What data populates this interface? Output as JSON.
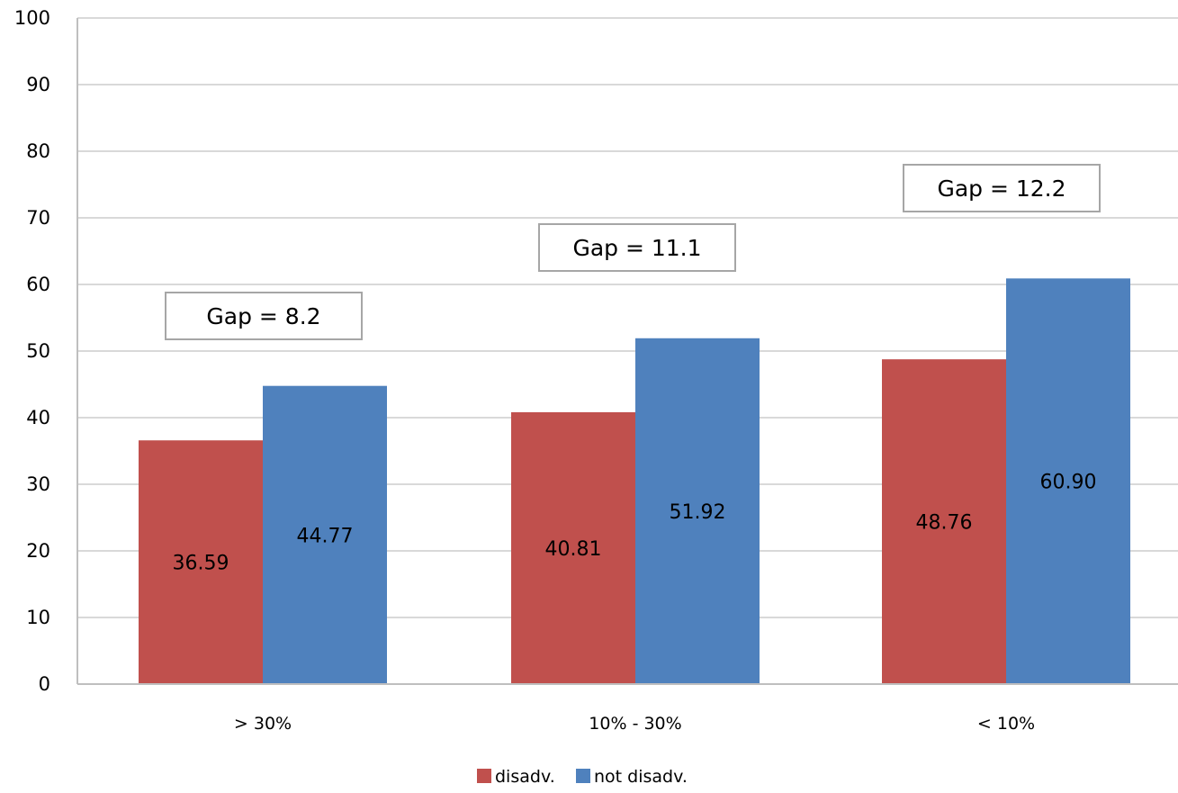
{
  "chart_data": {
    "type": "bar",
    "title": "",
    "xlabel": "",
    "ylabel": "",
    "ylim": [
      0,
      100
    ],
    "yticks": [
      0,
      10,
      20,
      30,
      40,
      50,
      60,
      70,
      80,
      90,
      100
    ],
    "grid": true,
    "categories": [
      "> 30%",
      "10% - 30%",
      "< 10%"
    ],
    "series": [
      {
        "name": "disadv.",
        "color": "#C0504D",
        "values": [
          36.59,
          40.81,
          48.76
        ],
        "labels": [
          "36.59",
          "40.81",
          "48.76"
        ]
      },
      {
        "name": "not disadv.",
        "color": "#4F81BD",
        "values": [
          44.77,
          51.92,
          60.9
        ],
        "labels": [
          "44.77",
          "51.92",
          "60.90"
        ]
      }
    ],
    "annotations": [
      "Gap = 8.2",
      "Gap = 11.1",
      "Gap = 12.2"
    ],
    "legend": {
      "position": "bottom",
      "entries": [
        "disadv.",
        "not disadv."
      ]
    }
  }
}
